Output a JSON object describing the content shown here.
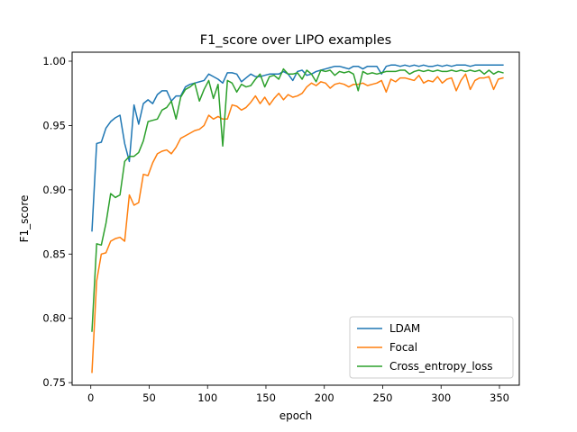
{
  "chart_data": {
    "type": "line",
    "title": "F1_score over LIPO examples",
    "xlabel": "epoch",
    "ylabel": "F1_score",
    "xlim": [
      -16,
      367
    ],
    "ylim": [
      0.748,
      1.007
    ],
    "x_ticks": [
      0,
      50,
      100,
      150,
      200,
      250,
      300,
      350
    ],
    "y_ticks": [
      0.75,
      0.8,
      0.85,
      0.9,
      0.95,
      1.0
    ],
    "x_tick_labels": [
      "0",
      "50",
      "100",
      "150",
      "200",
      "250",
      "300",
      "350"
    ],
    "y_tick_labels": [
      "0.75",
      "0.80",
      "0.85",
      "0.90",
      "0.95",
      "1.00"
    ],
    "grid": false,
    "legend_position": "lower-right",
    "x": [
      1,
      5,
      9,
      13,
      17,
      21,
      25,
      29,
      33,
      37,
      41,
      45,
      49,
      53,
      57,
      61,
      65,
      69,
      73,
      77,
      81,
      85,
      89,
      93,
      97,
      101,
      105,
      109,
      113,
      117,
      121,
      125,
      129,
      133,
      137,
      141,
      145,
      149,
      153,
      157,
      161,
      165,
      169,
      173,
      177,
      181,
      185,
      189,
      193,
      197,
      201,
      205,
      209,
      213,
      217,
      221,
      225,
      229,
      233,
      237,
      241,
      245,
      249,
      253,
      257,
      261,
      265,
      269,
      273,
      277,
      281,
      285,
      289,
      293,
      297,
      301,
      305,
      309,
      313,
      317,
      321,
      325,
      329,
      333,
      337,
      341,
      345,
      349,
      353
    ],
    "series": [
      {
        "name": "LDAM",
        "color": "#1f77b4",
        "values": [
          0.868,
          0.936,
          0.937,
          0.948,
          0.953,
          0.956,
          0.958,
          0.936,
          0.922,
          0.966,
          0.951,
          0.967,
          0.97,
          0.967,
          0.974,
          0.977,
          0.977,
          0.969,
          0.973,
          0.973,
          0.98,
          0.982,
          0.983,
          0.984,
          0.985,
          0.99,
          0.988,
          0.986,
          0.983,
          0.991,
          0.991,
          0.99,
          0.984,
          0.987,
          0.99,
          0.988,
          0.988,
          0.989,
          0.99,
          0.99,
          0.99,
          0.992,
          0.99,
          0.985,
          0.992,
          0.993,
          0.989,
          0.99,
          0.992,
          0.993,
          0.994,
          0.995,
          0.996,
          0.996,
          0.995,
          0.994,
          0.996,
          0.996,
          0.994,
          0.996,
          0.996,
          0.996,
          0.99,
          0.996,
          0.997,
          0.997,
          0.996,
          0.997,
          0.996,
          0.997,
          0.996,
          0.997,
          0.996,
          0.996,
          0.997,
          0.996,
          0.997,
          0.996,
          0.997,
          0.997,
          0.997,
          0.996,
          0.997,
          0.997,
          0.997,
          0.997,
          0.997,
          0.997,
          0.997
        ]
      },
      {
        "name": "Focal",
        "color": "#ff7f0e",
        "values": [
          0.758,
          0.829,
          0.85,
          0.851,
          0.86,
          0.862,
          0.863,
          0.86,
          0.896,
          0.888,
          0.89,
          0.912,
          0.911,
          0.921,
          0.928,
          0.93,
          0.931,
          0.928,
          0.933,
          0.94,
          0.942,
          0.944,
          0.946,
          0.947,
          0.95,
          0.958,
          0.955,
          0.957,
          0.955,
          0.955,
          0.966,
          0.965,
          0.962,
          0.964,
          0.968,
          0.973,
          0.967,
          0.972,
          0.966,
          0.971,
          0.975,
          0.97,
          0.974,
          0.972,
          0.973,
          0.975,
          0.98,
          0.983,
          0.981,
          0.984,
          0.983,
          0.979,
          0.982,
          0.983,
          0.982,
          0.98,
          0.982,
          0.982,
          0.983,
          0.981,
          0.982,
          0.983,
          0.985,
          0.976,
          0.986,
          0.984,
          0.987,
          0.987,
          0.986,
          0.985,
          0.989,
          0.983,
          0.985,
          0.984,
          0.988,
          0.983,
          0.986,
          0.987,
          0.977,
          0.985,
          0.99,
          0.978,
          0.985,
          0.987,
          0.987,
          0.988,
          0.978,
          0.986,
          0.987
        ]
      },
      {
        "name": "Cross_entropy_loss",
        "color": "#2ca02c",
        "values": [
          0.79,
          0.858,
          0.857,
          0.874,
          0.897,
          0.894,
          0.896,
          0.922,
          0.926,
          0.926,
          0.929,
          0.938,
          0.953,
          0.954,
          0.955,
          0.962,
          0.964,
          0.969,
          0.955,
          0.972,
          0.978,
          0.98,
          0.983,
          0.969,
          0.978,
          0.985,
          0.971,
          0.982,
          0.934,
          0.985,
          0.983,
          0.976,
          0.982,
          0.98,
          0.981,
          0.986,
          0.99,
          0.98,
          0.988,
          0.989,
          0.986,
          0.994,
          0.99,
          0.99,
          0.991,
          0.986,
          0.993,
          0.99,
          0.984,
          0.993,
          0.992,
          0.993,
          0.989,
          0.992,
          0.991,
          0.992,
          0.99,
          0.977,
          0.992,
          0.99,
          0.991,
          0.99,
          0.991,
          0.992,
          0.992,
          0.992,
          0.993,
          0.993,
          0.99,
          0.992,
          0.993,
          0.992,
          0.993,
          0.992,
          0.993,
          0.992,
          0.992,
          0.993,
          0.992,
          0.993,
          0.992,
          0.993,
          0.992,
          0.993,
          0.99,
          0.993,
          0.99,
          0.992,
          0.991
        ]
      }
    ]
  }
}
